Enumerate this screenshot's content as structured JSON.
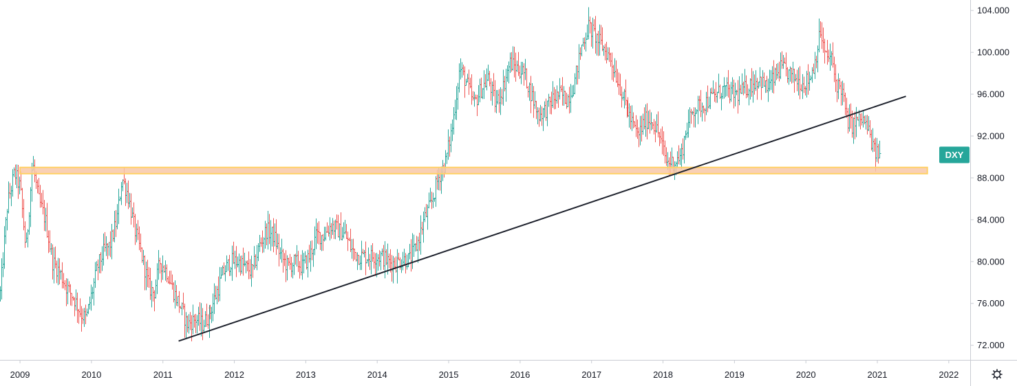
{
  "colors": {
    "up": "#26a69a",
    "down": "#ef5350",
    "support_band_fill": "#f8c8a8",
    "support_band_border": "#ffd166",
    "trendline": "#1e222d",
    "symbol_badge": "#26a69a",
    "axis_line": "#c9ccd3",
    "background": "#ffffff"
  },
  "settings_icon": "gear-icon",
  "chart_data": {
    "type": "candlestick",
    "symbol": "DXY",
    "timeframe": "weekly",
    "x_tick_labels": [
      "2009",
      "2010",
      "2011",
      "2012",
      "2013",
      "2014",
      "2015",
      "2016",
      "2017",
      "2018",
      "2019",
      "2020",
      "2021",
      "2022"
    ],
    "y_tick_labels": [
      "104.000",
      "100.000",
      "96.000",
      "92.000",
      "88.000",
      "84.000",
      "80.000",
      "76.000",
      "72.000"
    ],
    "y_ticks": [
      104,
      100,
      96,
      92,
      88,
      84,
      80,
      76,
      72
    ],
    "ylim": [
      70.6,
      105
    ],
    "xlim": [
      2008.72,
      2022.3
    ],
    "grid": false,
    "last_value": 90.2,
    "price_path": [
      [
        2008.72,
        77.0
      ],
      [
        2008.82,
        85.5
      ],
      [
        2008.92,
        88.5
      ],
      [
        2009.0,
        87.0
      ],
      [
        2009.08,
        81.0
      ],
      [
        2009.17,
        89.5
      ],
      [
        2009.25,
        86.0
      ],
      [
        2009.35,
        84.0
      ],
      [
        2009.45,
        80.0
      ],
      [
        2009.55,
        79.0
      ],
      [
        2009.65,
        77.5
      ],
      [
        2009.75,
        76.5
      ],
      [
        2009.85,
        75.0
      ],
      [
        2009.92,
        74.5
      ],
      [
        2010.0,
        77.0
      ],
      [
        2010.08,
        79.5
      ],
      [
        2010.17,
        81.0
      ],
      [
        2010.25,
        81.5
      ],
      [
        2010.35,
        84.0
      ],
      [
        2010.42,
        88.0
      ],
      [
        2010.5,
        86.5
      ],
      [
        2010.6,
        83.0
      ],
      [
        2010.7,
        80.5
      ],
      [
        2010.8,
        77.5
      ],
      [
        2010.87,
        77.0
      ],
      [
        2010.95,
        80.0
      ],
      [
        2011.05,
        79.0
      ],
      [
        2011.15,
        77.0
      ],
      [
        2011.25,
        75.5
      ],
      [
        2011.33,
        74.0
      ],
      [
        2011.45,
        74.5
      ],
      [
        2011.55,
        74.0
      ],
      [
        2011.65,
        75.0
      ],
      [
        2011.75,
        77.0
      ],
      [
        2011.85,
        79.0
      ],
      [
        2011.95,
        80.0
      ],
      [
        2012.05,
        80.0
      ],
      [
        2012.15,
        79.5
      ],
      [
        2012.25,
        79.0
      ],
      [
        2012.35,
        81.5
      ],
      [
        2012.45,
        83.0
      ],
      [
        2012.55,
        82.5
      ],
      [
        2012.65,
        80.5
      ],
      [
        2012.75,
        79.5
      ],
      [
        2012.85,
        80.0
      ],
      [
        2012.95,
        79.5
      ],
      [
        2013.05,
        80.5
      ],
      [
        2013.15,
        82.5
      ],
      [
        2013.25,
        82.5
      ],
      [
        2013.35,
        83.5
      ],
      [
        2013.45,
        83.0
      ],
      [
        2013.55,
        82.5
      ],
      [
        2013.65,
        81.0
      ],
      [
        2013.75,
        80.5
      ],
      [
        2013.85,
        80.5
      ],
      [
        2013.95,
        80.5
      ],
      [
        2014.05,
        80.5
      ],
      [
        2014.15,
        80.0
      ],
      [
        2014.25,
        79.8
      ],
      [
        2014.35,
        80.2
      ],
      [
        2014.45,
        80.2
      ],
      [
        2014.55,
        81.5
      ],
      [
        2014.65,
        84.0
      ],
      [
        2014.75,
        85.5
      ],
      [
        2014.85,
        88.0
      ],
      [
        2014.95,
        89.5
      ],
      [
        2015.05,
        93.0
      ],
      [
        2015.15,
        98.5
      ],
      [
        2015.25,
        97.0
      ],
      [
        2015.35,
        95.0
      ],
      [
        2015.45,
        96.5
      ],
      [
        2015.55,
        97.5
      ],
      [
        2015.65,
        95.0
      ],
      [
        2015.75,
        96.5
      ],
      [
        2015.85,
        99.0
      ],
      [
        2015.95,
        98.5
      ],
      [
        2016.05,
        98.0
      ],
      [
        2016.15,
        96.0
      ],
      [
        2016.25,
        94.0
      ],
      [
        2016.35,
        94.5
      ],
      [
        2016.45,
        95.5
      ],
      [
        2016.55,
        96.0
      ],
      [
        2016.65,
        95.5
      ],
      [
        2016.75,
        97.0
      ],
      [
        2016.85,
        100.5
      ],
      [
        2016.95,
        102.5
      ],
      [
        2017.05,
        101.5
      ],
      [
        2017.15,
        100.5
      ],
      [
        2017.25,
        99.5
      ],
      [
        2017.35,
        97.5
      ],
      [
        2017.45,
        95.5
      ],
      [
        2017.55,
        93.5
      ],
      [
        2017.65,
        92.0
      ],
      [
        2017.75,
        93.5
      ],
      [
        2017.85,
        93.5
      ],
      [
        2017.95,
        92.0
      ],
      [
        2018.05,
        89.5
      ],
      [
        2018.15,
        89.5
      ],
      [
        2018.25,
        90.0
      ],
      [
        2018.32,
        92.5
      ],
      [
        2018.42,
        94.5
      ],
      [
        2018.55,
        95.0
      ],
      [
        2018.65,
        95.5
      ],
      [
        2018.75,
        96.0
      ],
      [
        2018.85,
        96.5
      ],
      [
        2018.95,
        96.0
      ],
      [
        2019.05,
        96.0
      ],
      [
        2019.15,
        96.5
      ],
      [
        2019.25,
        97.0
      ],
      [
        2019.35,
        97.5
      ],
      [
        2019.45,
        96.5
      ],
      [
        2019.55,
        97.5
      ],
      [
        2019.65,
        98.5
      ],
      [
        2019.75,
        98.0
      ],
      [
        2019.85,
        97.5
      ],
      [
        2019.95,
        97.0
      ],
      [
        2020.05,
        97.5
      ],
      [
        2020.12,
        99.0
      ],
      [
        2020.2,
        102.0
      ],
      [
        2020.27,
        99.5
      ],
      [
        2020.35,
        99.5
      ],
      [
        2020.42,
        97.0
      ],
      [
        2020.5,
        96.5
      ],
      [
        2020.57,
        93.5
      ],
      [
        2020.65,
        93.0
      ],
      [
        2020.72,
        93.5
      ],
      [
        2020.8,
        93.5
      ],
      [
        2020.87,
        92.5
      ],
      [
        2020.95,
        90.5
      ],
      [
        2021.03,
        90.2
      ]
    ],
    "support_band": {
      "y0": 88.4,
      "y1": 89.0,
      "x0": 2009.0,
      "x1": 2021.7
    },
    "trendline": {
      "x0": 2011.22,
      "y0": 72.4,
      "x1": 2021.4,
      "y1": 95.8
    }
  }
}
